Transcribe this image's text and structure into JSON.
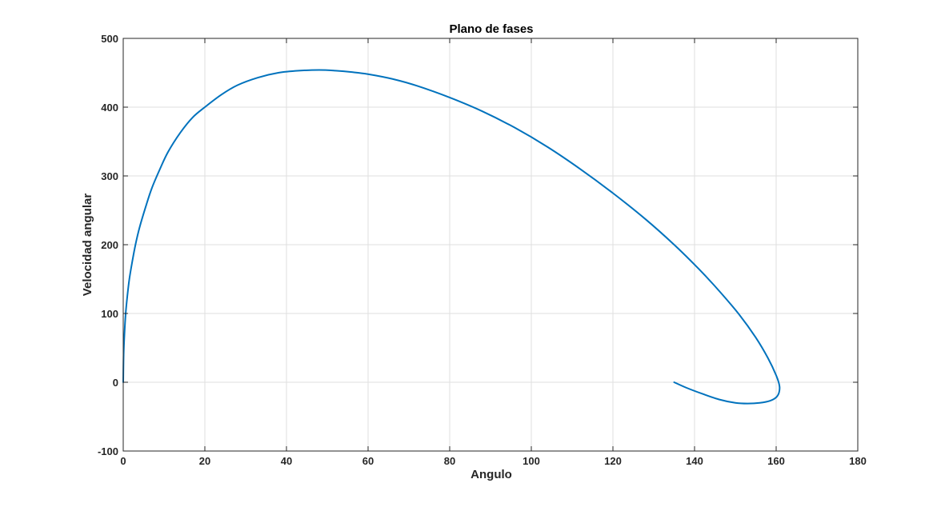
{
  "chart_data": {
    "type": "line",
    "title": "Plano de fases",
    "xlabel": "Angulo",
    "ylabel": "Velocidad angular",
    "xlim": [
      0,
      180
    ],
    "ylim": [
      -100,
      500
    ],
    "xticks": [
      0,
      20,
      40,
      60,
      80,
      100,
      120,
      140,
      160,
      180
    ],
    "yticks": [
      -100,
      0,
      100,
      200,
      300,
      400,
      500
    ],
    "xtick_labels": [
      "0",
      "20",
      "40",
      "60",
      "80",
      "100",
      "120",
      "140",
      "160",
      "180"
    ],
    "ytick_labels": [
      "-100",
      "0",
      "100",
      "200",
      "300",
      "400",
      "500"
    ],
    "grid": true,
    "series": [
      {
        "color": "#0072BD",
        "x": [
          0,
          0.1,
          0.3,
          0.6,
          1.0,
          1.5,
          2.2,
          3.0,
          4.0,
          5.5,
          7.0,
          9.0,
          11.0,
          14.0,
          17.0,
          20.0,
          24.0,
          28.0,
          33.0,
          38.0,
          43.0,
          48.0,
          52.0,
          56.0,
          60.0,
          66.0,
          72.0,
          80.0,
          88.0,
          96.0,
          104.0,
          112.0,
          120.0,
          128.0,
          135.0,
          141.0,
          146.0,
          151.0,
          155.0,
          158.0,
          160.0,
          160.8,
          160.7,
          160.0,
          158.5,
          156.0,
          153.0,
          150.0,
          146.0,
          142.0,
          138.0,
          135.0
        ],
        "y": [
          0,
          40,
          70,
          100,
          125,
          150,
          175,
          200,
          225,
          255,
          282,
          310,
          335,
          363,
          385,
          400,
          418,
          432,
          443,
          450,
          453,
          454,
          453,
          451,
          448,
          441,
          431,
          414,
          394,
          370,
          342,
          310,
          275,
          237,
          200,
          165,
          133,
          98,
          65,
          35,
          10,
          -5,
          -15,
          -22,
          -27,
          -30,
          -31,
          -30,
          -25,
          -17,
          -8,
          0
        ]
      }
    ]
  }
}
